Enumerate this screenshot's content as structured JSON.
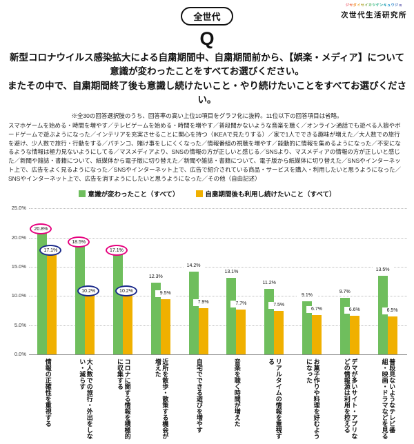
{
  "brand": {
    "reading": "ジセダイセイカツケンキュウジョ",
    "name": "次世代生活研究所"
  },
  "header": {
    "badge": "全世代",
    "q": "Q",
    "title_lines": [
      "新型コロナウイルス感染拡大による自粛期間中、自粛期間前から、【娯楽・メディア】について",
      "意識が変わったことをすべてお選びください。",
      "またその中で、自粛期間終了後も意識し続けたいこと・やり続けたいことをすべてお選びください。"
    ]
  },
  "note": {
    "line1": "※全30の回答選択肢のうち、回答率の高い上位10項目をグラフ化に抜粋。11位以下の回答項目は省略。",
    "body": "スマホゲームを始める・時間を増やす／テレビゲームを始める・時間を増やす／普段聞かないような音楽を聴く／オンライン通話でも遊べる人狼やボードゲームで遊ぶようになった／インテリアを充実させることに関心を持つ（IKEAで見たりする）／家で1人でできる趣味が増えた／大人数での旅行を避け、少人数で旅行・行動をする／パチンコ、賭け事をしにくくなった／情報番組の視聴を増やす／能動的に情報を集めるようになった／不安になるような情報は極力見ないようにしてる／マスメディアより、SNSの情報の方が正しいと感じる／SNSより、マスメディアの情報の方が正しいと感じた／新聞や雑誌・書籍について、紙媒体から電子版に切り替えた／新聞や雑誌・書籍について、電子版から紙媒体に切り替えた／SNSやインターネット上で、広告をよく見るようになった／SNSやインターネット上で、広告で紹介されている商品・サービスを購入・利用したいと思うようになった／SNSやインターネット上で、広告を消すようにしたいと思うようになった／その他（自由記述）"
  },
  "legend": [
    {
      "label": "意識が変わったこと（すべて）",
      "color": "#6fbe5d"
    },
    {
      "label": "自粛期間後も利用し続けたいこと（すべて）",
      "color": "#f0b000"
    }
  ],
  "chart_data": {
    "type": "bar",
    "title": "",
    "categories": [
      "情報の正確性を重視する",
      "大人数での旅行・外出をしない・減らす",
      "コロナに関する情報を積極的に収集する",
      "近所を散歩・散策する機会が増えた",
      "自宅でできる遊びを増やす",
      "音楽を聴く時間が増えた",
      "リアルタイムの情報を重視する",
      "お菓子作りや料理を好むようになった",
      "デマが多いサイト・アプリなどの情報源は利用を控える",
      "普段見ないようなテレビ番組・映画・ドラマなどを見る"
    ],
    "series": [
      {
        "name": "意識が変わったこと（すべて）",
        "color": "#6fbe5d",
        "values": [
          20.8,
          18.5,
          17.1,
          12.3,
          14.2,
          13.1,
          11.2,
          9.1,
          9.7,
          13.5
        ]
      },
      {
        "name": "自粛期間後も利用し続けたいこと（すべて）",
        "color": "#f0b000",
        "values": [
          17.1,
          10.2,
          10.2,
          9.5,
          7.9,
          7.7,
          7.5,
          6.7,
          6.6,
          6.5
        ]
      }
    ],
    "ylim": [
      0,
      25
    ],
    "ytick_values": [
      0,
      5,
      10,
      15,
      20,
      25
    ],
    "ytick_labels": [
      "0.0%",
      "5.0%",
      "10.0%",
      "15.0%",
      "20.0%",
      "25.0%"
    ],
    "grid": true,
    "legend_position": "top",
    "highlight": {
      "series0_circled": [
        0,
        1,
        2
      ],
      "series1_circled": [
        0,
        1,
        2
      ],
      "series0_circle_color": "#e6007e",
      "series1_circle_color": "#1b2a8a"
    }
  }
}
